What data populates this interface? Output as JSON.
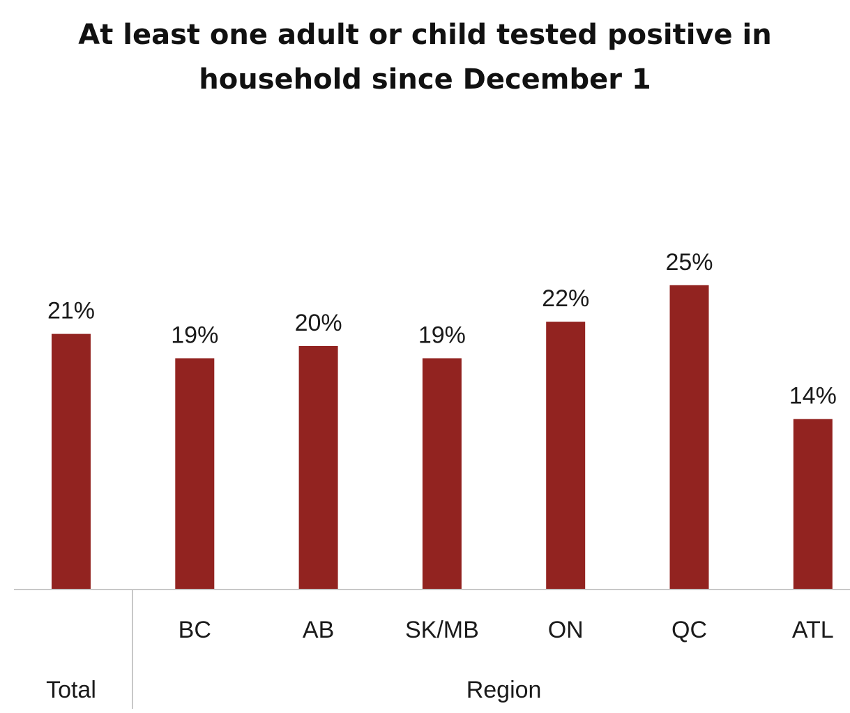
{
  "title_lines": [
    "At least one adult or child tested positive in",
    "household since December 1"
  ],
  "colors": {
    "bar": "#922320",
    "axis": "#c8c8c8",
    "text": "#1a1a1a"
  },
  "chart_data": {
    "type": "bar",
    "title": "At least one adult or child tested positive in household since December 1",
    "categories": [
      "",
      "BC",
      "AB",
      "SK/MB",
      "ON",
      "QC",
      "ATL"
    ],
    "groups": [
      {
        "label": "Total",
        "categories": [
          ""
        ]
      },
      {
        "label": "Region",
        "categories": [
          "BC",
          "AB",
          "SK/MB",
          "ON",
          "QC",
          "ATL"
        ]
      }
    ],
    "values": [
      21,
      19,
      20,
      19,
      22,
      25,
      14
    ],
    "data_labels": [
      "21%",
      "19%",
      "20%",
      "19%",
      "22%",
      "25%",
      "14%"
    ],
    "unit": "%",
    "ylim": [
      0,
      25
    ],
    "xlabel": "",
    "ylabel": "",
    "grid": false,
    "legend": "none"
  }
}
